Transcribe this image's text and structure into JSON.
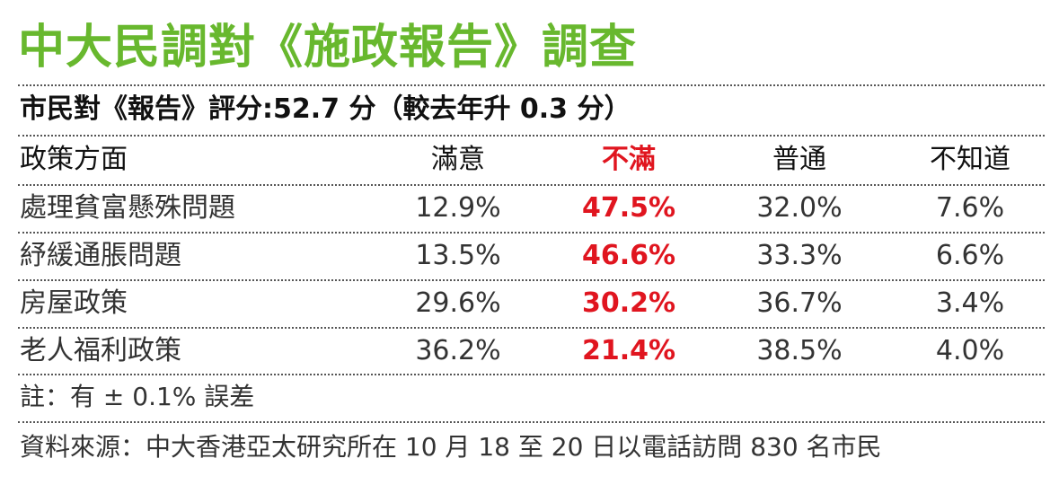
{
  "chart_data": {
    "type": "table",
    "title": "中大民調對《施政報告》調查",
    "subtitle": "市民對《報告》評分:52.7 分（較去年升 0.3 分）",
    "columns": [
      "政策方面",
      "滿意",
      "不滿",
      "普通",
      "不知道"
    ],
    "rows": [
      {
        "name": "處理貧富懸殊問題",
        "values": [
          "12.9%",
          "47.5%",
          "32.0%",
          "7.6%"
        ]
      },
      {
        "name": "紓緩通脹問題",
        "values": [
          "13.5%",
          "46.6%",
          "33.3%",
          "6.6%"
        ]
      },
      {
        "name": "房屋政策",
        "values": [
          "29.6%",
          "30.2%",
          "36.7%",
          "3.4%"
        ]
      },
      {
        "name": "老人福利政策",
        "values": [
          "36.2%",
          "21.4%",
          "38.5%",
          "4.0%"
        ]
      }
    ],
    "note": "註：有 ± 0.1% 誤差",
    "source": "資料來源：中大香港亞太研究所在 10 月 18 至 20 日以電話訪問 830 名市民"
  },
  "colors": {
    "title_green": "#68b82e",
    "highlight_red": "#e0151f",
    "text": "#333333",
    "separator": "#555555"
  }
}
